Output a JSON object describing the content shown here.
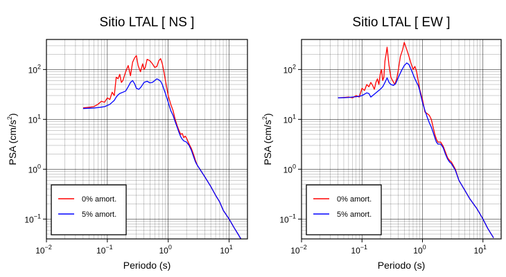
{
  "chart_data": [
    {
      "type": "line",
      "title": "Sitio LTAL [ NS ]",
      "xlabel": "Periodo (s)",
      "ylabel_base": "PSA (cm/s",
      "ylabel_sup": "2",
      "ylabel_tail": ")",
      "x_scale": "log",
      "y_scale": "log",
      "xlim": [
        0.01,
        20
      ],
      "ylim": [
        0.04,
        400
      ],
      "x_ticks": [
        {
          "base": "10",
          "exp": "−2",
          "value": 0.01
        },
        {
          "base": "10",
          "exp": "−1",
          "value": 0.1
        },
        {
          "base": "10",
          "exp": "0",
          "value": 1
        },
        {
          "base": "10",
          "exp": "1",
          "value": 10
        }
      ],
      "y_ticks": [
        {
          "base": "10",
          "exp": "−1",
          "value": 0.1
        },
        {
          "base": "10",
          "exp": "0",
          "value": 1
        },
        {
          "base": "10",
          "exp": "1",
          "value": 10
        },
        {
          "base": "10",
          "exp": "2",
          "value": 100
        }
      ],
      "grid": true,
      "legend_position": "bottom-left",
      "series": [
        {
          "name": "0% amort.",
          "color": "#ff0000",
          "points": [
            [
              0.04,
              17
            ],
            [
              0.05,
              17.5
            ],
            [
              0.06,
              18
            ],
            [
              0.07,
              20
            ],
            [
              0.08,
              23
            ],
            [
              0.09,
              22
            ],
            [
              0.1,
              27
            ],
            [
              0.11,
              25
            ],
            [
              0.12,
              35
            ],
            [
              0.13,
              30
            ],
            [
              0.14,
              70
            ],
            [
              0.15,
              65
            ],
            [
              0.16,
              80
            ],
            [
              0.17,
              55
            ],
            [
              0.18,
              60
            ],
            [
              0.2,
              90
            ],
            [
              0.22,
              120
            ],
            [
              0.24,
              75
            ],
            [
              0.26,
              140
            ],
            [
              0.28,
              170
            ],
            [
              0.3,
              190
            ],
            [
              0.32,
              120
            ],
            [
              0.35,
              90
            ],
            [
              0.38,
              130
            ],
            [
              0.4,
              100
            ],
            [
              0.42,
              110
            ],
            [
              0.45,
              160
            ],
            [
              0.5,
              150
            ],
            [
              0.55,
              130
            ],
            [
              0.6,
              110
            ],
            [
              0.65,
              115
            ],
            [
              0.7,
              150
            ],
            [
              0.75,
              165
            ],
            [
              0.8,
              130
            ],
            [
              0.85,
              90
            ],
            [
              0.9,
              60
            ],
            [
              1.0,
              30
            ],
            [
              1.1,
              20
            ],
            [
              1.2,
              15
            ],
            [
              1.3,
              10
            ],
            [
              1.4,
              7.5
            ],
            [
              1.5,
              6
            ],
            [
              1.6,
              5
            ],
            [
              1.7,
              5.2
            ],
            [
              1.8,
              4.3
            ],
            [
              1.9,
              4.6
            ],
            [
              2.0,
              4.2
            ],
            [
              2.2,
              3.2
            ],
            [
              2.4,
              2.6
            ],
            [
              2.6,
              2.0
            ],
            [
              2.8,
              1.5
            ],
            [
              3.0,
              1.2
            ],
            [
              3.5,
              0.9
            ],
            [
              4,
              0.7
            ],
            [
              5,
              0.45
            ],
            [
              6,
              0.3
            ],
            [
              7,
              0.22
            ],
            [
              8,
              0.15
            ],
            [
              10,
              0.1
            ],
            [
              12,
              0.068
            ],
            [
              14,
              0.05
            ],
            [
              16,
              0.038
            ]
          ]
        },
        {
          "name": "5% amort.",
          "color": "#0000ff",
          "points": [
            [
              0.04,
              16.5
            ],
            [
              0.05,
              16.7
            ],
            [
              0.06,
              16.9
            ],
            [
              0.07,
              17.2
            ],
            [
              0.08,
              17.6
            ],
            [
              0.09,
              18
            ],
            [
              0.1,
              19
            ],
            [
              0.11,
              20
            ],
            [
              0.12,
              22
            ],
            [
              0.13,
              24
            ],
            [
              0.14,
              28
            ],
            [
              0.15,
              31
            ],
            [
              0.16,
              33
            ],
            [
              0.18,
              35
            ],
            [
              0.2,
              37
            ],
            [
              0.22,
              45
            ],
            [
              0.24,
              55
            ],
            [
              0.26,
              60
            ],
            [
              0.28,
              52
            ],
            [
              0.3,
              42
            ],
            [
              0.33,
              40
            ],
            [
              0.36,
              45
            ],
            [
              0.4,
              55
            ],
            [
              0.45,
              58
            ],
            [
              0.5,
              54
            ],
            [
              0.55,
              55
            ],
            [
              0.6,
              60
            ],
            [
              0.65,
              65
            ],
            [
              0.7,
              62
            ],
            [
              0.75,
              58
            ],
            [
              0.8,
              50
            ],
            [
              0.85,
              40
            ],
            [
              0.9,
              33
            ],
            [
              1.0,
              22
            ],
            [
              1.1,
              15
            ],
            [
              1.2,
              12
            ],
            [
              1.3,
              9
            ],
            [
              1.4,
              7
            ],
            [
              1.5,
              5.5
            ],
            [
              1.6,
              4.5
            ],
            [
              1.7,
              4.0
            ],
            [
              1.8,
              3.7
            ],
            [
              2.0,
              3.5
            ],
            [
              2.2,
              3.0
            ],
            [
              2.4,
              2.4
            ],
            [
              2.6,
              1.8
            ],
            [
              2.8,
              1.4
            ],
            [
              3.0,
              1.2
            ],
            [
              3.5,
              0.9
            ],
            [
              4,
              0.7
            ],
            [
              5,
              0.45
            ],
            [
              6,
              0.3
            ],
            [
              7,
              0.22
            ],
            [
              8,
              0.15
            ],
            [
              10,
              0.1
            ],
            [
              12,
              0.068
            ],
            [
              14,
              0.05
            ],
            [
              16,
              0.038
            ]
          ]
        }
      ]
    },
    {
      "type": "line",
      "title": "Sitio LTAL [ EW ]",
      "xlabel": "Periodo (s)",
      "ylabel_base": "PSA (cm/s",
      "ylabel_sup": "2",
      "ylabel_tail": ")",
      "x_scale": "log",
      "y_scale": "log",
      "xlim": [
        0.01,
        20
      ],
      "ylim": [
        0.04,
        400
      ],
      "x_ticks": [
        {
          "base": "10",
          "exp": "−2",
          "value": 0.01
        },
        {
          "base": "10",
          "exp": "−1",
          "value": 0.1
        },
        {
          "base": "10",
          "exp": "0",
          "value": 1
        },
        {
          "base": "10",
          "exp": "1",
          "value": 10
        }
      ],
      "y_ticks": [
        {
          "base": "10",
          "exp": "−1",
          "value": 0.1
        },
        {
          "base": "10",
          "exp": "0",
          "value": 1
        },
        {
          "base": "10",
          "exp": "1",
          "value": 10
        },
        {
          "base": "10",
          "exp": "2",
          "value": 100
        }
      ],
      "grid": true,
      "legend_position": "bottom-left",
      "series": [
        {
          "name": "0% amort.",
          "color": "#ff0000",
          "points": [
            [
              0.04,
              27
            ],
            [
              0.05,
              27.5
            ],
            [
              0.06,
              28
            ],
            [
              0.07,
              27
            ],
            [
              0.08,
              30
            ],
            [
              0.09,
              28
            ],
            [
              0.1,
              42
            ],
            [
              0.11,
              38
            ],
            [
              0.12,
              50
            ],
            [
              0.13,
              45
            ],
            [
              0.14,
              55
            ],
            [
              0.15,
              48
            ],
            [
              0.16,
              40
            ],
            [
              0.17,
              55
            ],
            [
              0.18,
              65
            ],
            [
              0.19,
              50
            ],
            [
              0.2,
              80
            ],
            [
              0.21,
              100
            ],
            [
              0.22,
              60
            ],
            [
              0.23,
              70
            ],
            [
              0.24,
              150
            ],
            [
              0.25,
              200
            ],
            [
              0.26,
              280
            ],
            [
              0.27,
              180
            ],
            [
              0.28,
              120
            ],
            [
              0.3,
              70
            ],
            [
              0.32,
              60
            ],
            [
              0.35,
              50
            ],
            [
              0.38,
              70
            ],
            [
              0.4,
              100
            ],
            [
              0.43,
              180
            ],
            [
              0.47,
              250
            ],
            [
              0.5,
              350
            ],
            [
              0.55,
              250
            ],
            [
              0.6,
              180
            ],
            [
              0.65,
              130
            ],
            [
              0.7,
              100
            ],
            [
              0.75,
              115
            ],
            [
              0.8,
              90
            ],
            [
              0.85,
              60
            ],
            [
              0.9,
              40
            ],
            [
              1.0,
              25
            ],
            [
              1.1,
              14
            ],
            [
              1.2,
              13
            ],
            [
              1.3,
              12
            ],
            [
              1.4,
              10
            ],
            [
              1.5,
              7
            ],
            [
              1.6,
              5
            ],
            [
              1.7,
              4
            ],
            [
              1.8,
              3.5
            ],
            [
              2.0,
              3.5
            ],
            [
              2.2,
              2.9
            ],
            [
              2.4,
              2.2
            ],
            [
              2.6,
              1.7
            ],
            [
              2.8,
              1.5
            ],
            [
              3.0,
              1.4
            ],
            [
              3.5,
              1.0
            ],
            [
              4,
              0.6
            ],
            [
              5,
              0.38
            ],
            [
              6,
              0.26
            ],
            [
              7,
              0.2
            ],
            [
              8,
              0.16
            ],
            [
              10,
              0.1
            ],
            [
              12,
              0.065
            ],
            [
              14,
              0.048
            ],
            [
              15,
              0.042
            ]
          ]
        },
        {
          "name": "5% amort.",
          "color": "#0000ff",
          "points": [
            [
              0.04,
              27
            ],
            [
              0.05,
              27.2
            ],
            [
              0.06,
              27.5
            ],
            [
              0.07,
              28
            ],
            [
              0.08,
              28.5
            ],
            [
              0.09,
              29
            ],
            [
              0.1,
              30
            ],
            [
              0.11,
              32
            ],
            [
              0.12,
              34
            ],
            [
              0.13,
              33
            ],
            [
              0.14,
              28
            ],
            [
              0.15,
              30
            ],
            [
              0.16,
              32
            ],
            [
              0.18,
              36
            ],
            [
              0.2,
              40
            ],
            [
              0.22,
              45
            ],
            [
              0.24,
              55
            ],
            [
              0.26,
              68
            ],
            [
              0.28,
              55
            ],
            [
              0.3,
              50
            ],
            [
              0.33,
              48
            ],
            [
              0.36,
              52
            ],
            [
              0.4,
              70
            ],
            [
              0.45,
              95
            ],
            [
              0.5,
              120
            ],
            [
              0.55,
              135
            ],
            [
              0.6,
              125
            ],
            [
              0.65,
              100
            ],
            [
              0.7,
              80
            ],
            [
              0.75,
              65
            ],
            [
              0.8,
              55
            ],
            [
              0.85,
              48
            ],
            [
              0.9,
              38
            ],
            [
              1.0,
              22
            ],
            [
              1.1,
              15
            ],
            [
              1.2,
              11
            ],
            [
              1.3,
              8.5
            ],
            [
              1.4,
              7
            ],
            [
              1.5,
              5.5
            ],
            [
              1.6,
              4.3
            ],
            [
              1.7,
              3.5
            ],
            [
              1.8,
              3.2
            ],
            [
              2.0,
              3.2
            ],
            [
              2.2,
              2.7
            ],
            [
              2.4,
              2.0
            ],
            [
              2.6,
              1.6
            ],
            [
              2.8,
              1.4
            ],
            [
              3.0,
              1.3
            ],
            [
              3.5,
              0.95
            ],
            [
              4,
              0.6
            ],
            [
              5,
              0.38
            ],
            [
              6,
              0.26
            ],
            [
              7,
              0.2
            ],
            [
              8,
              0.16
            ],
            [
              10,
              0.1
            ],
            [
              12,
              0.065
            ],
            [
              14,
              0.048
            ],
            [
              15,
              0.042
            ]
          ]
        }
      ]
    }
  ]
}
